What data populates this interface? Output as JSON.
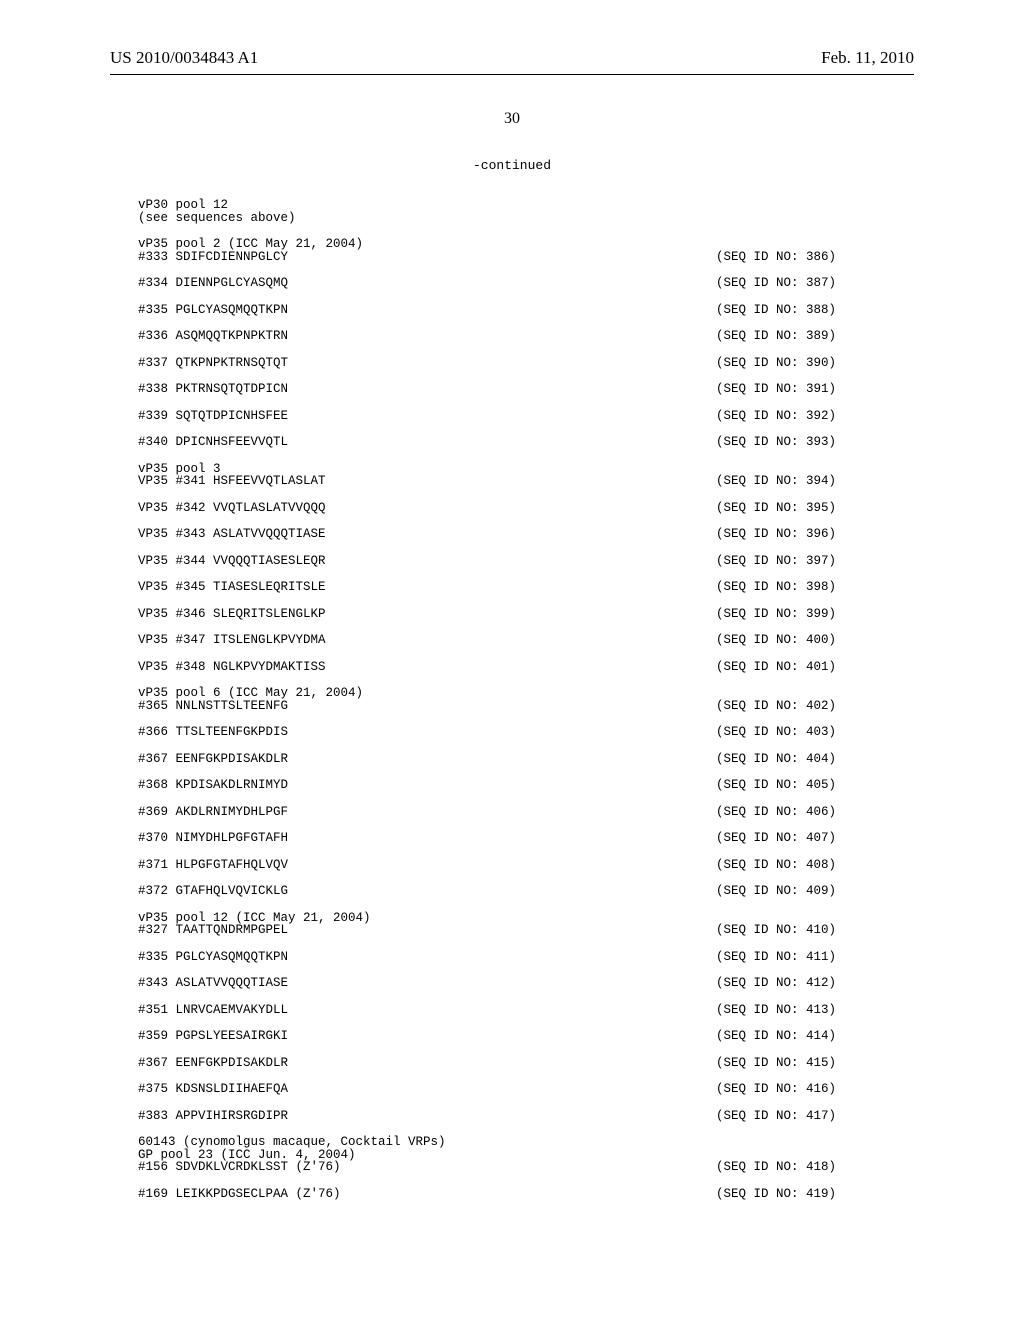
{
  "header": {
    "pub_number": "US 2010/0034843 A1",
    "pub_date": "Feb. 11, 2010"
  },
  "page_number": "30",
  "continued_label": "-continued",
  "sections": [
    {
      "heading": "vP30 pool 12\n(see sequences above)",
      "rows": []
    },
    {
      "heading": "vP35 pool 2 (ICC May 21, 2004)",
      "rows": [
        {
          "tight": true,
          "left": "#333 SDIFCDIENNPGLCY",
          "right": "(SEQ ID NO: 386)"
        },
        {
          "left": "#334 DIENNPGLCYASQMQ",
          "right": "(SEQ ID NO: 387)"
        },
        {
          "left": "#335 PGLCYASQMQQTKPN",
          "right": "(SEQ ID NO: 388)"
        },
        {
          "left": "#336 ASQMQQTKPNPKTRN",
          "right": "(SEQ ID NO: 389)"
        },
        {
          "left": "#337 QTKPNPKTRNSQTQT",
          "right": "(SEQ ID NO: 390)"
        },
        {
          "left": "#338 PKTRNSQTQTDPICN",
          "right": "(SEQ ID NO: 391)"
        },
        {
          "left": "#339 SQTQTDPICNHSFEE",
          "right": "(SEQ ID NO: 392)"
        },
        {
          "left": "#340 DPICNHSFEEVVQTL",
          "right": "(SEQ ID NO: 393)"
        }
      ]
    },
    {
      "heading": "vP35 pool 3",
      "rows": [
        {
          "tight": true,
          "left": "VP35 #341 HSFEEVVQTLASLAT",
          "right": "(SEQ ID NO: 394)"
        },
        {
          "left": "VP35 #342 VVQTLASLATVVQQQ",
          "right": "(SEQ ID NO: 395)"
        },
        {
          "left": "VP35 #343 ASLATVVQQQTIASE",
          "right": "(SEQ ID NO: 396)"
        },
        {
          "left": "VP35 #344 VVQQQTIASESLEQR",
          "right": "(SEQ ID NO: 397)"
        },
        {
          "left": "VP35 #345 TIASESLEQRITSLE",
          "right": "(SEQ ID NO: 398)"
        },
        {
          "left": "VP35 #346 SLEQRITSLENGLKP",
          "right": "(SEQ ID NO: 399)"
        },
        {
          "left": "VP35 #347 ITSLENGLKPVYDMA",
          "right": "(SEQ ID NO: 400)"
        },
        {
          "left": "VP35 #348 NGLKPVYDMAKTISS",
          "right": "(SEQ ID NO: 401)"
        }
      ]
    },
    {
      "heading": "vP35 pool 6 (ICC May 21, 2004)",
      "rows": [
        {
          "tight": true,
          "left": "#365 NNLNSTTSLTEENFG",
          "right": "(SEQ ID NO: 402)"
        },
        {
          "left": "#366 TTSLTEENFGKPDIS",
          "right": "(SEQ ID NO: 403)"
        },
        {
          "left": "#367 EENFGKPDISAKDLR",
          "right": "(SEQ ID NO: 404)"
        },
        {
          "left": "#368 KPDISAKDLRNIMYD",
          "right": "(SEQ ID NO: 405)"
        },
        {
          "left": "#369 AKDLRNIMYDHLPGF",
          "right": "(SEQ ID NO: 406)"
        },
        {
          "left": "#370 NIMYDHLPGFGTAFH",
          "right": "(SEQ ID NO: 407)"
        },
        {
          "left": "#371 HLPGFGTAFHQLVQV",
          "right": "(SEQ ID NO: 408)"
        },
        {
          "left": "#372 GTAFHQLVQVICKLG",
          "right": "(SEQ ID NO: 409)"
        }
      ]
    },
    {
      "heading": "vP35 pool 12 (ICC May 21, 2004)",
      "rows": [
        {
          "tight": true,
          "left": "#327 TAATTQNDRMPGPEL",
          "right": "(SEQ ID NO: 410)"
        },
        {
          "left": "#335 PGLCYASQMQQTKPN",
          "right": "(SEQ ID NO: 411)"
        },
        {
          "left": "#343 ASLATVVQQQTIASE",
          "right": "(SEQ ID NO: 412)"
        },
        {
          "left": "#351 LNRVCAEMVAKYDLL",
          "right": "(SEQ ID NO: 413)"
        },
        {
          "left": "#359 PGPSLYEESAIRGKI",
          "right": "(SEQ ID NO: 414)"
        },
        {
          "left": "#367 EENFGKPDISAKDLR",
          "right": "(SEQ ID NO: 415)"
        },
        {
          "left": "#375 KDSNSLDIIHAEFQA",
          "right": "(SEQ ID NO: 416)"
        },
        {
          "left": "#383 APPVIHIRSRGDIPR",
          "right": "(SEQ ID NO: 417)"
        }
      ]
    },
    {
      "heading": "60143 (cynomolgus macaque, Cocktail VRPs)\nGP pool 23 (ICC Jun. 4, 2004)",
      "rows": [
        {
          "tight": true,
          "left": "#156 SDVDKLVCRDKLSST (Z'76)",
          "right": "(SEQ ID NO: 418)"
        },
        {
          "left": "#169 LEIKKPDGSECLPAA (Z'76)",
          "right": "(SEQ ID NO: 419)"
        }
      ]
    }
  ]
}
